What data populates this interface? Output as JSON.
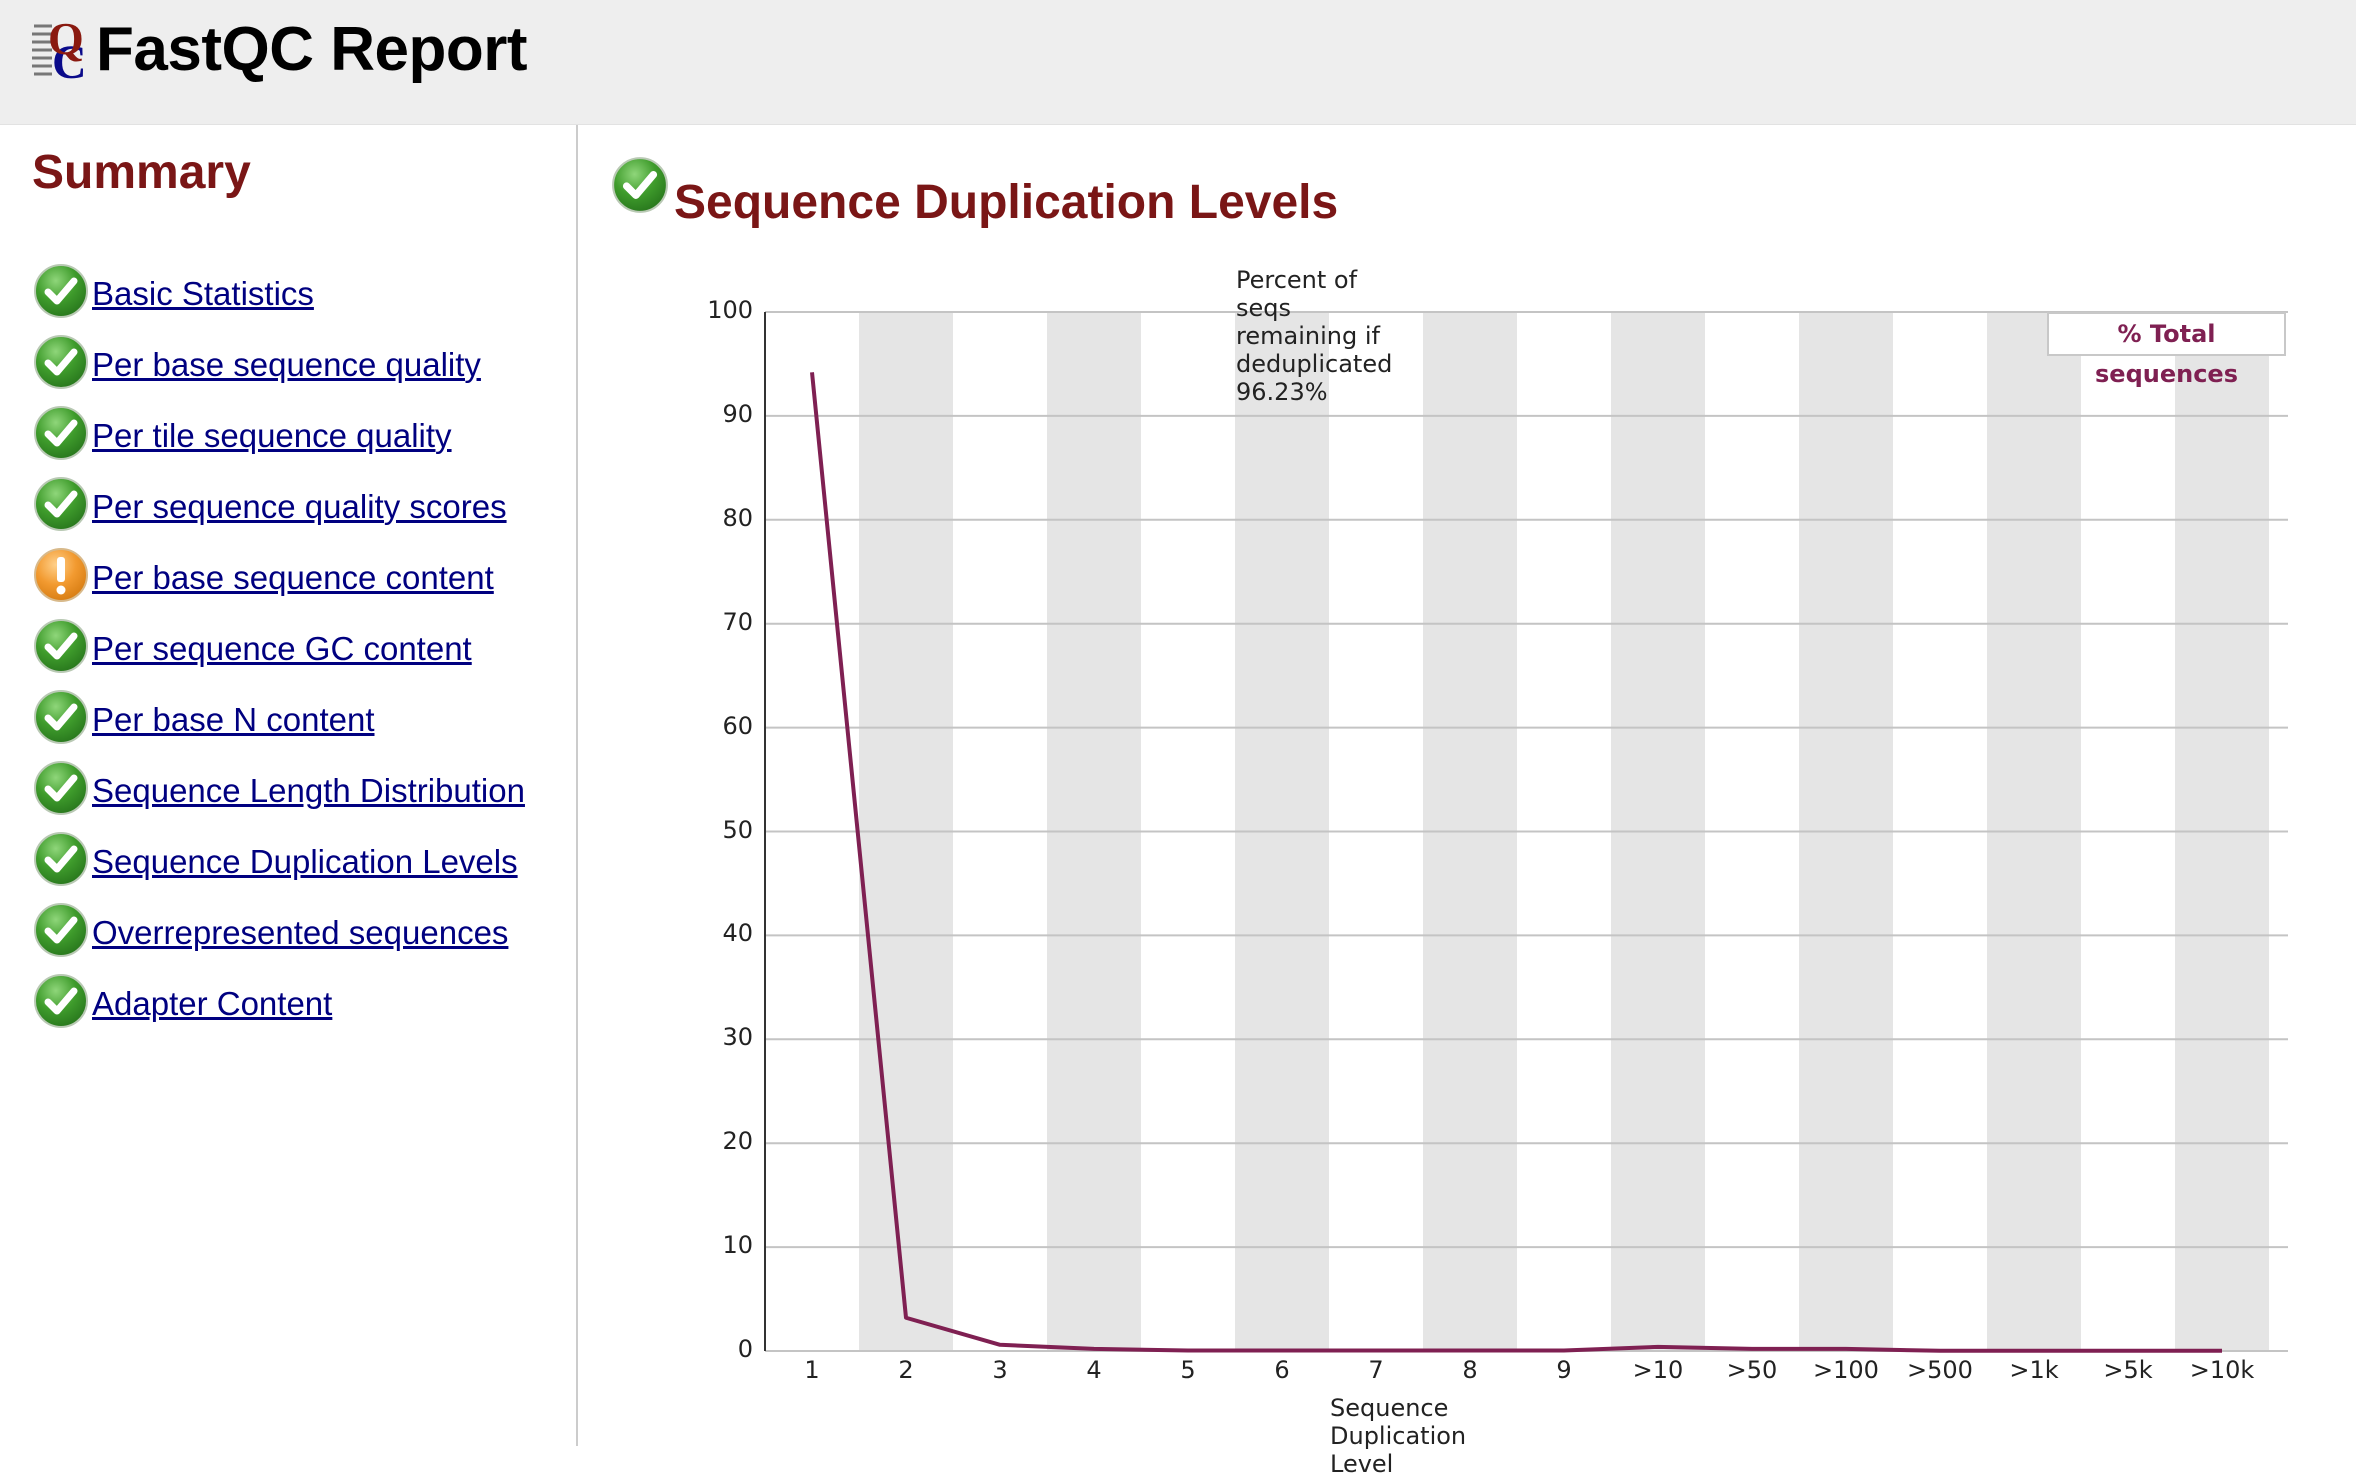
{
  "header": {
    "title": "FastQC Report",
    "logo_icon": "fastqc-logo-icon"
  },
  "sidebar": {
    "title": "Summary",
    "items": [
      {
        "label": "Basic Statistics",
        "status": "pass",
        "icon": "check-icon"
      },
      {
        "label": "Per base sequence quality",
        "status": "pass",
        "icon": "check-icon"
      },
      {
        "label": "Per tile sequence quality",
        "status": "pass",
        "icon": "check-icon"
      },
      {
        "label": "Per sequence quality scores",
        "status": "pass",
        "icon": "check-icon"
      },
      {
        "label": "Per base sequence content",
        "status": "warn",
        "icon": "warning-icon"
      },
      {
        "label": "Per sequence GC content",
        "status": "pass",
        "icon": "check-icon"
      },
      {
        "label": "Per base N content",
        "status": "pass",
        "icon": "check-icon"
      },
      {
        "label": "Sequence Length Distribution",
        "status": "pass",
        "icon": "check-icon"
      },
      {
        "label": "Sequence Duplication Levels",
        "status": "pass",
        "icon": "check-icon"
      },
      {
        "label": "Overrepresented sequences",
        "status": "pass",
        "icon": "check-icon"
      },
      {
        "label": "Adapter Content",
        "status": "pass",
        "icon": "check-icon"
      }
    ]
  },
  "main": {
    "title": "Sequence Duplication Levels",
    "status": "pass"
  },
  "colors": {
    "heading": "#7a1616",
    "link": "#000080",
    "series": "#7f2052",
    "band": "#e5e5e5",
    "pass": "#3a9a2a",
    "warn": "#f0a030"
  },
  "chart_data": {
    "type": "line",
    "title": "Percent of seqs remaining if deduplicated 96.23%",
    "xlabel": "Sequence Duplication Level",
    "ylabel": "",
    "ylim": [
      0,
      100
    ],
    "yticks": [
      0,
      10,
      20,
      30,
      40,
      50,
      60,
      70,
      80,
      90,
      100
    ],
    "grid": true,
    "legend_position": "top-right",
    "categories": [
      "1",
      "2",
      "3",
      "4",
      "5",
      "6",
      "7",
      "8",
      "9",
      ">10",
      ">50",
      ">100",
      ">500",
      ">1k",
      ">5k",
      ">10k"
    ],
    "series": [
      {
        "name": "% Total sequences",
        "color": "#7f2052",
        "values": [
          94.2,
          3.2,
          0.6,
          0.2,
          0.05,
          0.05,
          0.05,
          0.05,
          0.05,
          0.4,
          0.2,
          0.2,
          0.02,
          0.02,
          0.02,
          0.02
        ]
      }
    ]
  }
}
